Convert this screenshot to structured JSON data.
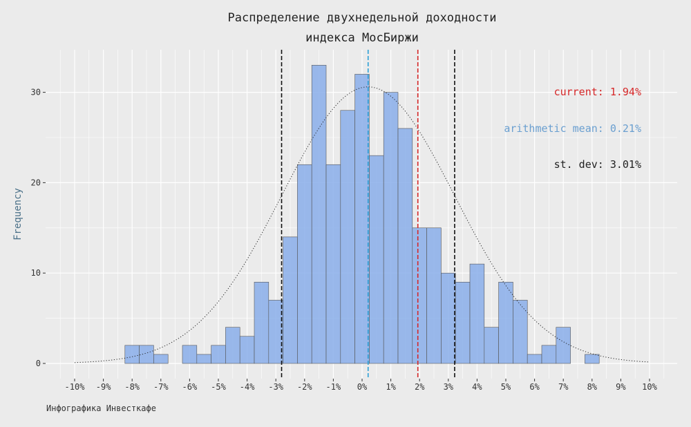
{
  "chart_data": {
    "type": "bar",
    "title": [
      "Распределение двухнедельной доходности",
      "индекса МосБиржи"
    ],
    "xlabel": "",
    "ylabel": "Frequency",
    "xlim": [
      -10.5,
      10.5
    ],
    "ylim": [
      0,
      34
    ],
    "bin_width": 0.5,
    "x_ticks": [
      -10,
      -9,
      -8,
      -7,
      -6,
      -5,
      -4,
      -3,
      -2,
      -1,
      0,
      1,
      2,
      3,
      4,
      5,
      6,
      7,
      8,
      9,
      10
    ],
    "x_tick_labels": [
      "-10%",
      "-9%",
      "-8%",
      "-7%",
      "-6%",
      "-5%",
      "-4%",
      "-3%",
      "-2%",
      "-1%",
      "0%",
      "1%",
      "2%",
      "3%",
      "4%",
      "5%",
      "6%",
      "7%",
      "8%",
      "9%",
      "10%"
    ],
    "y_ticks": [
      0,
      10,
      20,
      30
    ],
    "y_tick_labels": [
      "0",
      "10",
      "20",
      "30"
    ],
    "bins": [
      {
        "start": -8.25,
        "count": 2
      },
      {
        "start": -7.75,
        "count": 2
      },
      {
        "start": -7.25,
        "count": 1
      },
      {
        "start": -6.75,
        "count": 0
      },
      {
        "start": -6.25,
        "count": 2
      },
      {
        "start": -5.75,
        "count": 1
      },
      {
        "start": -5.25,
        "count": 2
      },
      {
        "start": -4.75,
        "count": 4
      },
      {
        "start": -4.25,
        "count": 3
      },
      {
        "start": -3.75,
        "count": 9
      },
      {
        "start": -3.25,
        "count": 7
      },
      {
        "start": -2.75,
        "count": 14
      },
      {
        "start": -2.25,
        "count": 22
      },
      {
        "start": -1.75,
        "count": 33
      },
      {
        "start": -1.25,
        "count": 22
      },
      {
        "start": -0.75,
        "count": 28
      },
      {
        "start": -0.25,
        "count": 32
      },
      {
        "start": 0.25,
        "count": 23
      },
      {
        "start": 0.75,
        "count": 30
      },
      {
        "start": 1.25,
        "count": 26
      },
      {
        "start": 1.75,
        "count": 15
      },
      {
        "start": 2.25,
        "count": 15
      },
      {
        "start": 2.75,
        "count": 10
      },
      {
        "start": 3.25,
        "count": 9
      },
      {
        "start": 3.75,
        "count": 11
      },
      {
        "start": 4.25,
        "count": 4
      },
      {
        "start": 4.75,
        "count": 9
      },
      {
        "start": 5.25,
        "count": 7
      },
      {
        "start": 5.75,
        "count": 1
      },
      {
        "start": 6.25,
        "count": 2
      },
      {
        "start": 6.75,
        "count": 4
      },
      {
        "start": 7.25,
        "count": 0
      },
      {
        "start": 7.75,
        "count": 1
      }
    ],
    "normal_curve": {
      "mean": 0.21,
      "sd": 3.01,
      "peak": 30.6,
      "x_range": [
        -10,
        10
      ],
      "style": "dotted"
    },
    "reference_lines": [
      {
        "x": -2.8,
        "color": "#111111",
        "style": "dashed"
      },
      {
        "x": 0.21,
        "color": "#2a9fd6",
        "style": "dashed"
      },
      {
        "x": 1.94,
        "color": "#d62728",
        "style": "dashed"
      },
      {
        "x": 3.22,
        "color": "#111111",
        "style": "dashed"
      }
    ],
    "annotations": [
      {
        "text": "current: 1.94%",
        "color": "#d62728"
      },
      {
        "text": "arithmetic mean: 0.21%",
        "color": "#6a9fd0"
      },
      {
        "text": "st. dev: 3.01%",
        "color": "#222222"
      }
    ],
    "grid": true,
    "colors": {
      "bar_fill": "#8aaeea",
      "bar_stroke": "#555555",
      "background": "#ebebeb",
      "grid": "#ffffff"
    }
  },
  "caption": "Инфографика Инвесткафе"
}
